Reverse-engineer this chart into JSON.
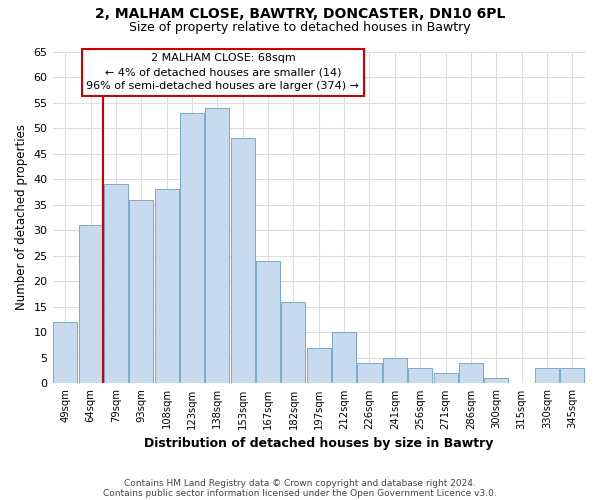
{
  "title": "2, MALHAM CLOSE, BAWTRY, DONCASTER, DN10 6PL",
  "subtitle": "Size of property relative to detached houses in Bawtry",
  "xlabel": "Distribution of detached houses by size in Bawtry",
  "ylabel": "Number of detached properties",
  "bar_color": "#c8daed",
  "bar_edge_color": "#7aaac8",
  "categories": [
    "49sqm",
    "64sqm",
    "79sqm",
    "93sqm",
    "108sqm",
    "123sqm",
    "138sqm",
    "153sqm",
    "167sqm",
    "182sqm",
    "197sqm",
    "212sqm",
    "226sqm",
    "241sqm",
    "256sqm",
    "271sqm",
    "286sqm",
    "300sqm",
    "315sqm",
    "330sqm",
    "345sqm"
  ],
  "values": [
    12,
    31,
    39,
    36,
    38,
    53,
    54,
    48,
    24,
    16,
    7,
    10,
    4,
    5,
    3,
    2,
    4,
    1,
    0,
    3,
    3
  ],
  "ylim": [
    0,
    65
  ],
  "yticks": [
    0,
    5,
    10,
    15,
    20,
    25,
    30,
    35,
    40,
    45,
    50,
    55,
    60,
    65
  ],
  "vline_index": 1.5,
  "annotation_title": "2 MALHAM CLOSE: 68sqm",
  "annotation_line1": "← 4% of detached houses are smaller (14)",
  "annotation_line2": "96% of semi-detached houses are larger (374) →",
  "vline_color": "#cc0000",
  "ann_box_color": "#cc0000",
  "footer1": "Contains HM Land Registry data © Crown copyright and database right 2024.",
  "footer2": "Contains public sector information licensed under the Open Government Licence v3.0.",
  "background_color": "#ffffff",
  "grid_color": "#dddddd",
  "title_fontsize": 10,
  "subtitle_fontsize": 9
}
